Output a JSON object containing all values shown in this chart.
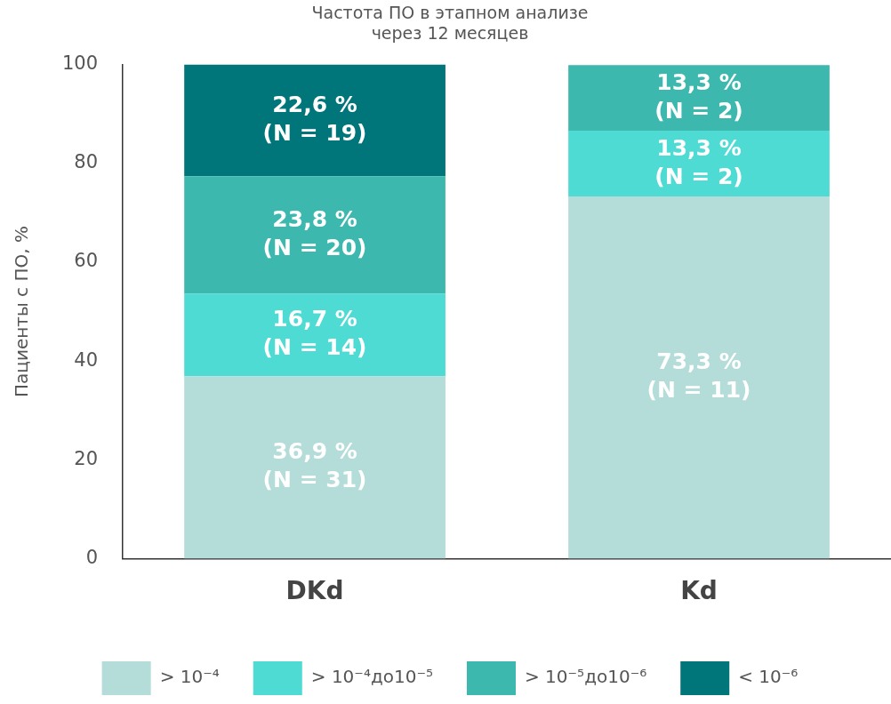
{
  "chart_data": {
    "type": "bar",
    "stacked": true,
    "title": [
      "Частота ПО в этапном анализе",
      "через 12 месяцев"
    ],
    "ylabel": "Пациенты с ПО, %",
    "categories": [
      "DKd",
      "Kd"
    ],
    "series": [
      {
        "name": "> 10⁻⁴",
        "color": "#b4dcd8",
        "values": [
          36.9,
          73.3
        ],
        "value_labels": [
          "36,9 %\n(N = 31)",
          "73,3 %\n(N = 11)"
        ]
      },
      {
        "name": "> 10⁻⁴до10⁻⁵",
        "color": "#4ddbd4",
        "values": [
          16.7,
          13.3
        ],
        "value_labels": [
          "16,7 %\n(N = 14)",
          "13,3 %\n(N = 2)"
        ]
      },
      {
        "name": "> 10⁻⁵до10⁻⁶",
        "color": "#3db8ae",
        "values": [
          23.8,
          13.3
        ],
        "value_labels": [
          "23,8 %\n(N = 20)",
          "13,3 %\n(N = 2)"
        ]
      },
      {
        "name": "< 10⁻⁶",
        "color": "#00757a",
        "values": [
          22.6,
          null
        ],
        "value_labels": [
          "22,6 %\n(N = 19)",
          null
        ]
      }
    ],
    "ylim": [
      0,
      100
    ],
    "yticks": [
      0,
      20,
      40,
      60,
      80,
      100
    ],
    "grid": false,
    "legend": "bottom"
  }
}
